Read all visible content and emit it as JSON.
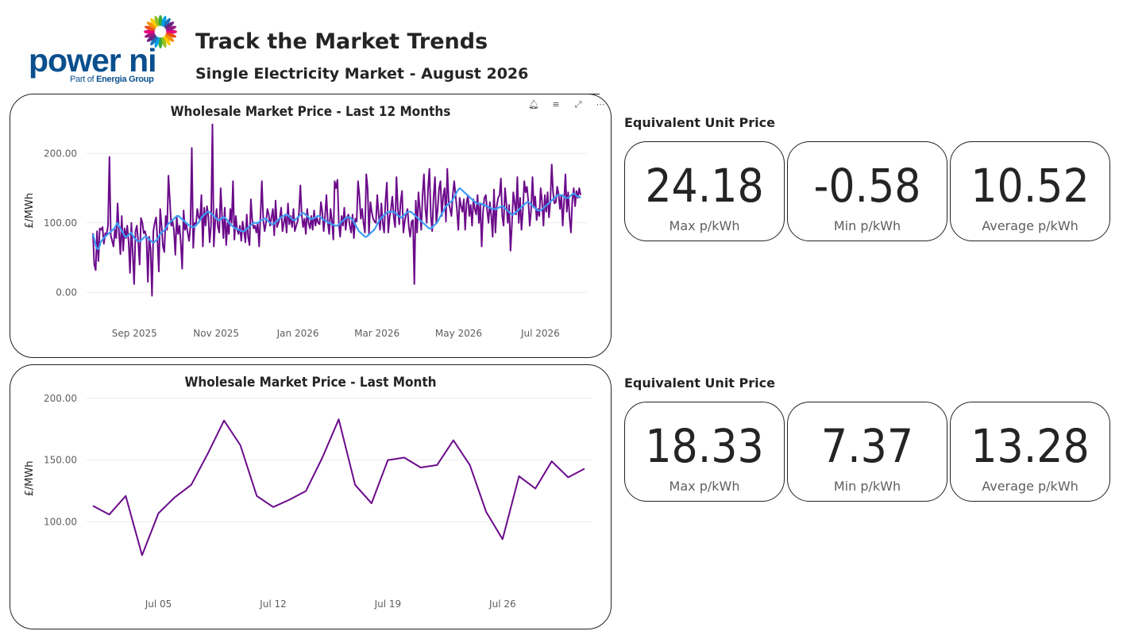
{
  "brand": {
    "name": "power ni",
    "tagline_prefix": "Part of ",
    "tagline_group": "Energia Group",
    "burst_colors": [
      "#e6007e",
      "#e94e1b",
      "#f39200",
      "#ffcc00",
      "#95c11f",
      "#3aaa35",
      "#009fe3",
      "#1d71b8",
      "#662483",
      "#951b81"
    ]
  },
  "header": {
    "title": "Track the Market Trends",
    "subtitle": "Single Electricity Market - August 2026"
  },
  "colors": {
    "primary": "#6b0a8a",
    "average": "#3d9cf5"
  },
  "sections": [
    {
      "label": "Equivalent Unit Price",
      "kpis": [
        {
          "value": "24.18",
          "label": "Max p/kWh"
        },
        {
          "value": "-0.58",
          "label": "Min p/kWh"
        },
        {
          "value": "10.52",
          "label": "Average p/kWh"
        }
      ]
    },
    {
      "label": "Equivalent Unit Price",
      "kpis": [
        {
          "value": "18.33",
          "label": "Max p/kWh"
        },
        {
          "value": "7.37",
          "label": "Min p/kWh"
        },
        {
          "value": "13.28",
          "label": "Average p/kWh"
        }
      ]
    }
  ],
  "chart_data": [
    {
      "type": "line",
      "title": "Wholesale Market Price - Last 12 Months",
      "ylabel": "£/MWh",
      "xlabel": "",
      "ylim": [
        -10,
        245
      ],
      "yticks": [
        0,
        100,
        200
      ],
      "ytick_labels": [
        "0.00",
        "100.00",
        "200.00"
      ],
      "x_start": "2025-08-01",
      "x_end": "2026-07-31",
      "xticks": [
        {
          "date": "2025-09-01",
          "label": "Sep 2025"
        },
        {
          "date": "2025-11-01",
          "label": "Nov 2025"
        },
        {
          "date": "2026-01-01",
          "label": "Jan 2026"
        },
        {
          "date": "2026-03-01",
          "label": "Mar 2026"
        },
        {
          "date": "2026-05-01",
          "label": "May 2026"
        },
        {
          "date": "2026-07-01",
          "label": "Jul 2026"
        }
      ],
      "grid": true,
      "series": [
        {
          "values": [
            85,
            40,
            32,
            88,
            45,
            92,
            90,
            94,
            70,
            85,
            84,
            96,
            195,
            82,
            74,
            66,
            90,
            78,
            128,
            85,
            55,
            110,
            60,
            92,
            78,
            96,
            72,
            28,
            100,
            55,
            12,
            88,
            96,
            72,
            40,
            107,
            100,
            85,
            88,
            78,
            15,
            80,
            62,
            -5,
            88,
            100,
            108,
            74,
            30,
            120,
            96,
            66,
            58,
            110,
            90,
            168,
            132,
            96,
            102,
            90,
            54,
            110,
            84,
            96,
            70,
            34,
            118,
            90,
            98,
            86,
            74,
            96,
            208,
            64,
            100,
            96,
            120,
            108,
            104,
            140,
            66,
            122,
            96,
            124,
            110,
            72,
            96,
            242,
            66,
            100,
            120,
            94,
            86,
            150,
            110,
            78,
            122,
            68,
            100,
            84,
            120,
            100,
            160,
            76,
            110,
            90,
            84,
            96,
            74,
            102,
            88,
            72,
            112,
            80,
            68,
            134,
            104,
            92,
            96,
            86,
            100,
            66,
            110,
            160,
            104,
            88,
            100,
            120,
            112,
            96,
            108,
            120,
            82,
            132,
            94,
            100,
            106,
            122,
            88,
            100,
            112,
            86,
            128,
            98,
            110,
            94,
            120,
            88,
            96,
            102,
            114,
            154,
            112,
            94,
            106,
            84,
            120,
            100,
            92,
            110,
            90,
            118,
            96,
            108,
            100,
            98,
            130,
            116,
            88,
            110,
            140,
            100,
            84,
            120,
            104,
            76,
            160,
            150,
            162,
            100,
            80,
            110,
            96,
            122,
            90,
            108,
            112,
            96,
            86,
            112,
            78,
            106,
            102,
            160,
            140,
            106,
            120,
            100,
            86,
            170,
            150,
            84,
            130,
            116,
            106,
            102,
            100,
            140,
            112,
            90,
            128,
            100,
            86,
            132,
            158,
            86,
            108,
            120,
            138,
            108,
            94,
            166,
            120,
            98,
            130,
            146,
            86,
            102,
            112,
            120,
            94,
            80,
            102,
            104,
            12,
            132,
            86,
            144,
            120,
            90,
            140,
            170,
            120,
            100,
            150,
            178,
            110,
            88,
            136,
            166,
            100,
            120,
            150,
            160,
            110,
            138,
            150,
            102,
            178,
            130,
            120,
            110,
            140,
            160,
            140,
            120,
            90,
            136,
            124,
            116,
            134,
            90,
            128,
            140,
            110,
            126,
            96,
            134,
            120,
            112,
            140,
            100,
            128,
            66,
            116,
            136,
            140,
            118,
            100,
            130,
            110,
            80,
            148,
            86,
            124,
            136,
            140,
            164,
            110,
            96,
            150,
            128,
            100,
            126,
            60,
            96,
            144,
            130,
            112,
            166,
            100,
            136,
            90,
            118,
            160,
            144,
            152,
            130,
            96,
            118,
            166,
            122,
            138,
            104,
            120,
            110,
            150,
            130,
            96,
            140,
            116,
            144,
            108,
            130,
            184,
            144,
            128,
            130,
            152,
            142,
            120,
            140,
            96,
            130,
            170,
            116,
            144,
            108,
            86,
            132,
            150,
            124,
            146,
            136,
            150,
            140
          ],
          "color": "#6b0a8a"
        },
        {
          "values": [
            84,
            76,
            66,
            62,
            64,
            72,
            75,
            78,
            80,
            82,
            84,
            86,
            88,
            90,
            92,
            96,
            100,
            96,
            92,
            88,
            84,
            80,
            80,
            82,
            84,
            86,
            82,
            78,
            76,
            74,
            74,
            74,
            76,
            78,
            80,
            80,
            78,
            76,
            74,
            72,
            72,
            74,
            76,
            80,
            84,
            86,
            88,
            90,
            94,
            98,
            100,
            102,
            104,
            106,
            108,
            110,
            110,
            108,
            106,
            104,
            102,
            100,
            98,
            96,
            95,
            94,
            94,
            96,
            98,
            100,
            104,
            108,
            110,
            112,
            114,
            116,
            116,
            114,
            112,
            110,
            108,
            106,
            104,
            104,
            106,
            108,
            108,
            106,
            104,
            100,
            98,
            96,
            94,
            92,
            92,
            90,
            90,
            88,
            88,
            88,
            90,
            92,
            94,
            96,
            98,
            100,
            100,
            100,
            100,
            102,
            104,
            104,
            106,
            106,
            104,
            102,
            100,
            98,
            98,
            100,
            102,
            104,
            106,
            108,
            110,
            110,
            112,
            112,
            110,
            108,
            106,
            104,
            104,
            106,
            108,
            110,
            112,
            114,
            114,
            112,
            110,
            108,
            106,
            106,
            106,
            108,
            108,
            110,
            110,
            108,
            106,
            104,
            104,
            102,
            100,
            100,
            98,
            98,
            96,
            96,
            96,
            98,
            100,
            102,
            104,
            106,
            108,
            108,
            108,
            106,
            104,
            100,
            96,
            92,
            88,
            86,
            84,
            82,
            80,
            80,
            82,
            84,
            86,
            88,
            90,
            94,
            98,
            102,
            106,
            108,
            110,
            112,
            114,
            116,
            116,
            116,
            116,
            116,
            114,
            112,
            110,
            108,
            108,
            110,
            112,
            114,
            116,
            116,
            116,
            114,
            112,
            110,
            108,
            106,
            104,
            102,
            100,
            98,
            96,
            94,
            92,
            92,
            94,
            96,
            98,
            100,
            104,
            108,
            112,
            116,
            120,
            124,
            126,
            128,
            130,
            132,
            136,
            140,
            144,
            148,
            150,
            148,
            146,
            144,
            142,
            140,
            138,
            136,
            134,
            132,
            130,
            128,
            128,
            128,
            128,
            126,
            126,
            124,
            124,
            122,
            122,
            120,
            120,
            120,
            120,
            122,
            122,
            124,
            124,
            122,
            120,
            118,
            116,
            114,
            112,
            112,
            114,
            116,
            118,
            120,
            122,
            124,
            126,
            128,
            130,
            130,
            128,
            126,
            124,
            122,
            120,
            118,
            118,
            118,
            120,
            122,
            124,
            126,
            128,
            130,
            132,
            134,
            136,
            138,
            140,
            140,
            140,
            140,
            138,
            136,
            136,
            136,
            138,
            140,
            142,
            142,
            140,
            138,
            138,
            136
          ],
          "color": "#3d9cf5"
        }
      ]
    },
    {
      "type": "line",
      "title": "Wholesale Market Price - Last Month",
      "ylabel": "£/MWh",
      "xlabel": "",
      "ylim": [
        65,
        205
      ],
      "yticks": [
        100,
        150,
        200
      ],
      "ytick_labels": [
        "100.00",
        "150.00",
        "200.00"
      ],
      "x_start": "2026-07-01",
      "x_end": "2026-07-31",
      "xticks": [
        {
          "date": "2026-07-05",
          "label": "Jul 05"
        },
        {
          "date": "2026-07-12",
          "label": "Jul 12"
        },
        {
          "date": "2026-07-19",
          "label": "Jul 19"
        },
        {
          "date": "2026-07-26",
          "label": "Jul 26"
        }
      ],
      "grid": true,
      "series": [
        {
          "values": [
            113,
            106,
            121,
            73,
            107,
            120,
            130,
            155,
            182,
            162,
            121,
            112,
            118,
            125,
            152,
            183,
            130,
            115,
            150,
            152,
            144,
            146,
            166,
            146,
            108,
            86,
            137,
            127,
            149,
            136,
            143
          ],
          "color": "#6b0a8a"
        }
      ]
    }
  ]
}
